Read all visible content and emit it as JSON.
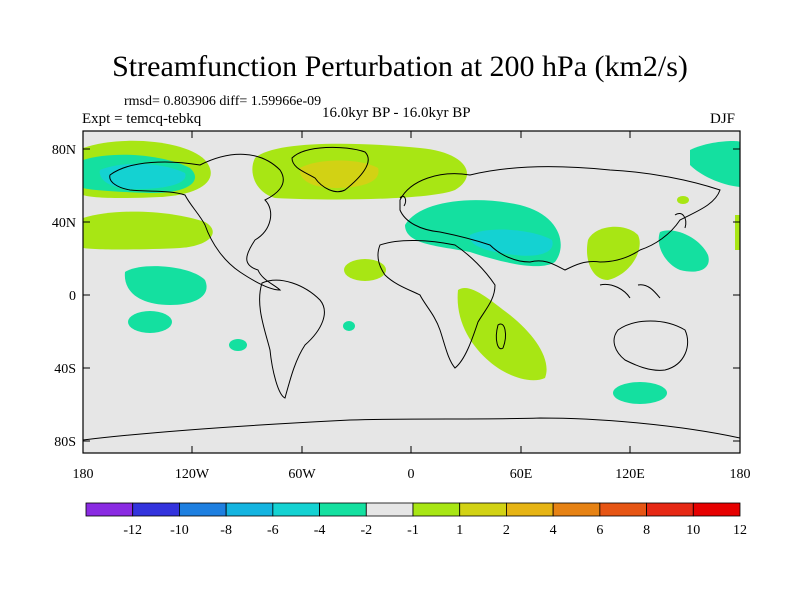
{
  "title": "Streamfunction Perturbation at 200 hPa (km2/s)",
  "stats": "rmsd= 0.803906 diff= 1.59966e-09",
  "experiment": "Expt = temcq-tebkq",
  "period": "16.0kyr BP - 16.0kyr BP",
  "season": "DJF",
  "lat_labels": [
    "80N",
    "40N",
    "0",
    "40S",
    "80S"
  ],
  "lon_labels": [
    "180",
    "120W",
    "60W",
    "0",
    "60E",
    "120E",
    "180"
  ],
  "colorbar": {
    "colors": [
      "#8a2be2",
      "#3333dd",
      "#1e7fe0",
      "#14b4e0",
      "#14d2d2",
      "#14e0a0",
      "#e6e6e6",
      "#a8e614",
      "#d2d214",
      "#e6b414",
      "#e68214",
      "#e65514",
      "#e62814",
      "#e60000"
    ],
    "labels": [
      "-12",
      "-10",
      "-8",
      "-6",
      "-4",
      "-2",
      "-1",
      "1",
      "2",
      "4",
      "6",
      "8",
      "10",
      "12"
    ]
  },
  "colors": {
    "positive_1_2": "#a8e614",
    "positive_2_4": "#d2d214",
    "negative_1_2": "#14e0a0",
    "negative_2_4": "#14d2d2",
    "neutral": "#e6e6e6"
  }
}
